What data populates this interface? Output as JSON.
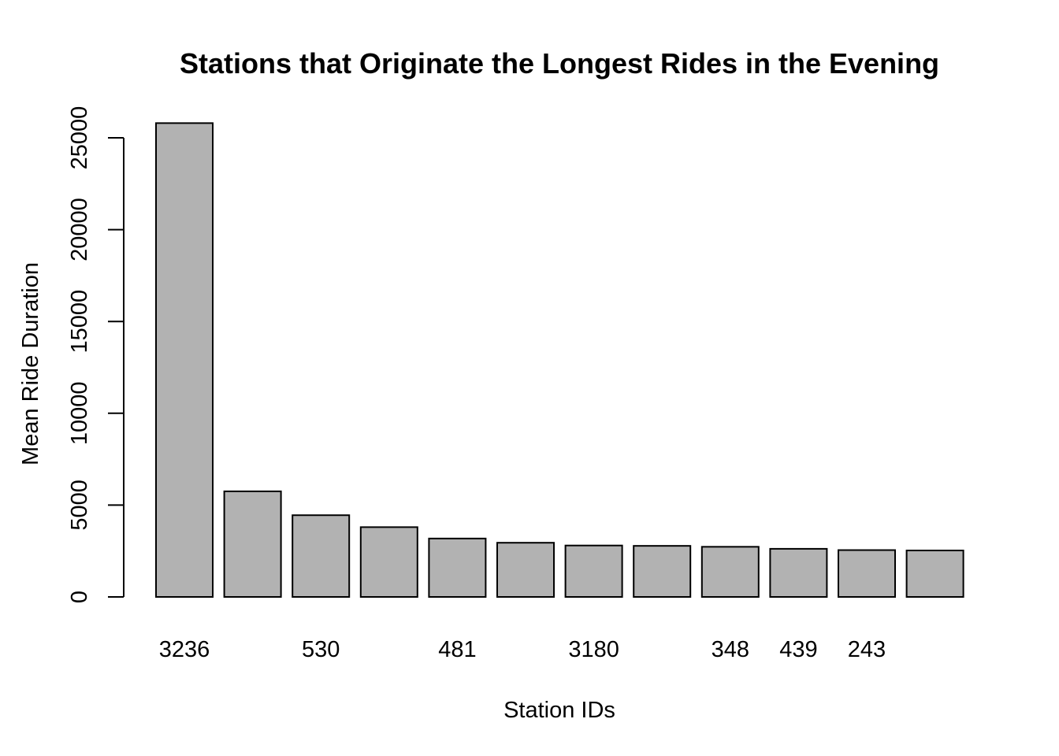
{
  "chart_data": {
    "type": "bar",
    "title": "Stations that Originate the Longest Rides in the Evening",
    "xlabel": "Station IDs",
    "ylabel": "Mean Ride Duration",
    "ylim": [
      0,
      26000
    ],
    "yticks": [
      0,
      5000,
      10000,
      15000,
      20000,
      25000
    ],
    "categories": [
      "3236",
      "",
      "530",
      "",
      "481",
      "",
      "3180",
      "",
      "348",
      "439",
      "243",
      ""
    ],
    "values": [
      25800,
      5750,
      4450,
      3800,
      3180,
      2950,
      2800,
      2780,
      2730,
      2620,
      2550,
      2530
    ],
    "bar_color": "#b2b2b2",
    "grid": false
  }
}
